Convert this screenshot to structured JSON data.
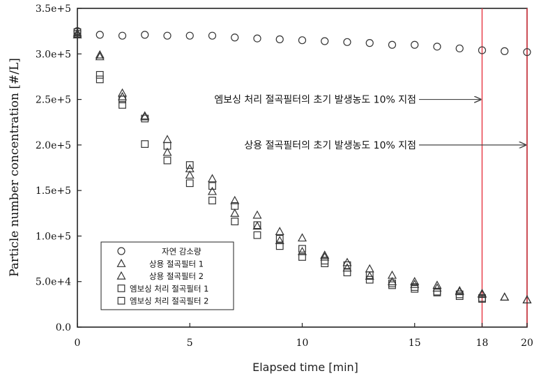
{
  "chart_data": {
    "type": "scatter",
    "xlabel": "Elapsed time [min]",
    "ylabel": "Particle number concentration [#/L]",
    "xlim": [
      0,
      20
    ],
    "ylim": [
      0,
      350000
    ],
    "x_ticks": [
      {
        "value": 0,
        "label": "0"
      },
      {
        "value": 5,
        "label": "5"
      },
      {
        "value": 10,
        "label": "10"
      },
      {
        "value": 15,
        "label": "15"
      },
      {
        "value": 18,
        "label": "18"
      },
      {
        "value": 20,
        "label": "20"
      }
    ],
    "y_ticks": [
      {
        "value": 0,
        "label": "0.0"
      },
      {
        "value": 50000,
        "label": "5.0e+4"
      },
      {
        "value": 100000,
        "label": "1.0e+5"
      },
      {
        "value": 150000,
        "label": "1.5e+5"
      },
      {
        "value": 200000,
        "label": "2.0e+5"
      },
      {
        "value": 250000,
        "label": "2.5e+5"
      },
      {
        "value": 300000,
        "label": "3.0e+5"
      },
      {
        "value": 350000,
        "label": "3.5e+5"
      }
    ],
    "grid": false,
    "legend_position": "bottom-left",
    "series": [
      {
        "name": "자연 감소량",
        "marker": "circle",
        "x": [
          0,
          1,
          2,
          3,
          4,
          5,
          6,
          7,
          8,
          9,
          10,
          11,
          12,
          13,
          14,
          15,
          16,
          17,
          18,
          19,
          20
        ],
        "y": [
          325000,
          321000,
          320000,
          321000,
          320000,
          320000,
          320000,
          318000,
          317000,
          316000,
          315000,
          314000,
          313000,
          312000,
          310000,
          310000,
          308000,
          306000,
          304000,
          303000,
          302000
        ]
      },
      {
        "name": "상용 절곡필터 1",
        "marker": "triangle",
        "x": [
          0,
          1,
          2,
          3,
          4,
          5,
          6,
          7,
          8,
          9,
          10,
          11,
          12,
          13,
          14,
          15,
          16,
          17,
          18,
          19,
          20
        ],
        "y": [
          323000,
          299000,
          257000,
          232000,
          206000,
          174000,
          163000,
          139000,
          123000,
          105000,
          98000,
          79000,
          71000,
          64000,
          57000,
          50000,
          46000,
          40000,
          37000,
          33000,
          30000
        ]
      },
      {
        "name": "상용 절곡필터 2",
        "marker": "triangle",
        "x": [
          0,
          1,
          2,
          3,
          4,
          5,
          6,
          7,
          8,
          9,
          10,
          11,
          12,
          13,
          14,
          15,
          16,
          17,
          18,
          19,
          20
        ],
        "y": [
          321000,
          297000,
          253000,
          231000,
          192000,
          167000,
          149000,
          125000,
          111000,
          95000,
          83000,
          77000,
          65000,
          56000,
          50000,
          47000,
          43000,
          39000,
          36000,
          33000,
          30000
        ]
      },
      {
        "name": "엠보싱 처리 절곡필터 1",
        "marker": "square",
        "x": [
          0,
          1,
          2,
          3,
          4,
          5,
          6,
          7,
          8,
          9,
          10,
          11,
          12,
          13,
          14,
          15,
          16,
          17,
          18
        ],
        "y": [
          324000,
          277000,
          250000,
          201000,
          183000,
          158000,
          139000,
          116000,
          101000,
          89000,
          77000,
          70000,
          60000,
          52000,
          46000,
          42000,
          38000,
          34000,
          32000
        ]
      },
      {
        "name": "엠보싱 처리 절곡필터 2",
        "marker": "square",
        "x": [
          0,
          1,
          2,
          3,
          4,
          5,
          6,
          7,
          8,
          9,
          10,
          11,
          12,
          13,
          14,
          15,
          16,
          17,
          18
        ],
        "y": [
          322000,
          272000,
          244000,
          229000,
          199000,
          178000,
          155000,
          133000,
          112000,
          97000,
          86000,
          73000,
          68000,
          57000,
          48000,
          44000,
          39000,
          36000,
          31000
        ]
      }
    ],
    "vertical_lines": [
      {
        "x": 18,
        "color": "#e8404a"
      },
      {
        "x": 20,
        "color": "#e8404a"
      }
    ],
    "annotations": [
      {
        "text": "엠보싱 처리 절곡필터의 초기 발생농도 10% 지점",
        "arrow_to_x": 18,
        "y": 250000
      },
      {
        "text": "상용 절곡필터의 초기 발생농도 10% 지점",
        "arrow_to_x": 20,
        "y": 200000
      }
    ]
  }
}
